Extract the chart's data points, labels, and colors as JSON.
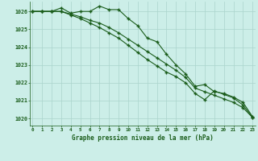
{
  "x": [
    0,
    1,
    2,
    3,
    4,
    5,
    6,
    7,
    8,
    9,
    10,
    11,
    12,
    13,
    14,
    15,
    16,
    17,
    18,
    19,
    20,
    21,
    22,
    23
  ],
  "line1": [
    1026.0,
    1026.0,
    1026.0,
    1026.2,
    1025.9,
    1026.0,
    1026.0,
    1026.3,
    1026.1,
    1026.1,
    1025.6,
    1025.2,
    1024.5,
    1024.3,
    1023.6,
    1023.0,
    1022.5,
    1021.8,
    1021.9,
    1021.5,
    1021.4,
    1021.2,
    1020.9,
    1020.1
  ],
  "line2": [
    1026.0,
    1026.0,
    1026.0,
    1026.0,
    1025.85,
    1025.7,
    1025.5,
    1025.35,
    1025.1,
    1024.8,
    1024.45,
    1024.1,
    1023.75,
    1023.4,
    1023.05,
    1022.7,
    1022.3,
    1021.7,
    1021.5,
    1021.3,
    1021.1,
    1020.9,
    1020.6,
    1020.05
  ],
  "line3": [
    1026.0,
    1026.0,
    1026.0,
    1026.0,
    1025.8,
    1025.6,
    1025.35,
    1025.1,
    1024.8,
    1024.5,
    1024.1,
    1023.7,
    1023.3,
    1022.95,
    1022.6,
    1022.35,
    1022.0,
    1021.4,
    1021.05,
    1021.55,
    1021.35,
    1021.15,
    1020.75,
    1020.05
  ],
  "xlabel": "Graphe pression niveau de la mer (hPa)",
  "yticks": [
    1020,
    1021,
    1022,
    1023,
    1024,
    1025,
    1026
  ],
  "xticks": [
    0,
    1,
    2,
    3,
    4,
    5,
    6,
    7,
    8,
    9,
    10,
    11,
    12,
    13,
    14,
    15,
    16,
    17,
    18,
    19,
    20,
    21,
    22,
    23
  ],
  "ylim": [
    1019.6,
    1026.55
  ],
  "xlim": [
    -0.3,
    23.3
  ],
  "line_color": "#1a5c1a",
  "bg_color": "#cceee8",
  "grid_color": "#aad4cc",
  "xlabel_color": "#1a5c1a",
  "tick_color": "#1a5c1a",
  "marker": "+"
}
